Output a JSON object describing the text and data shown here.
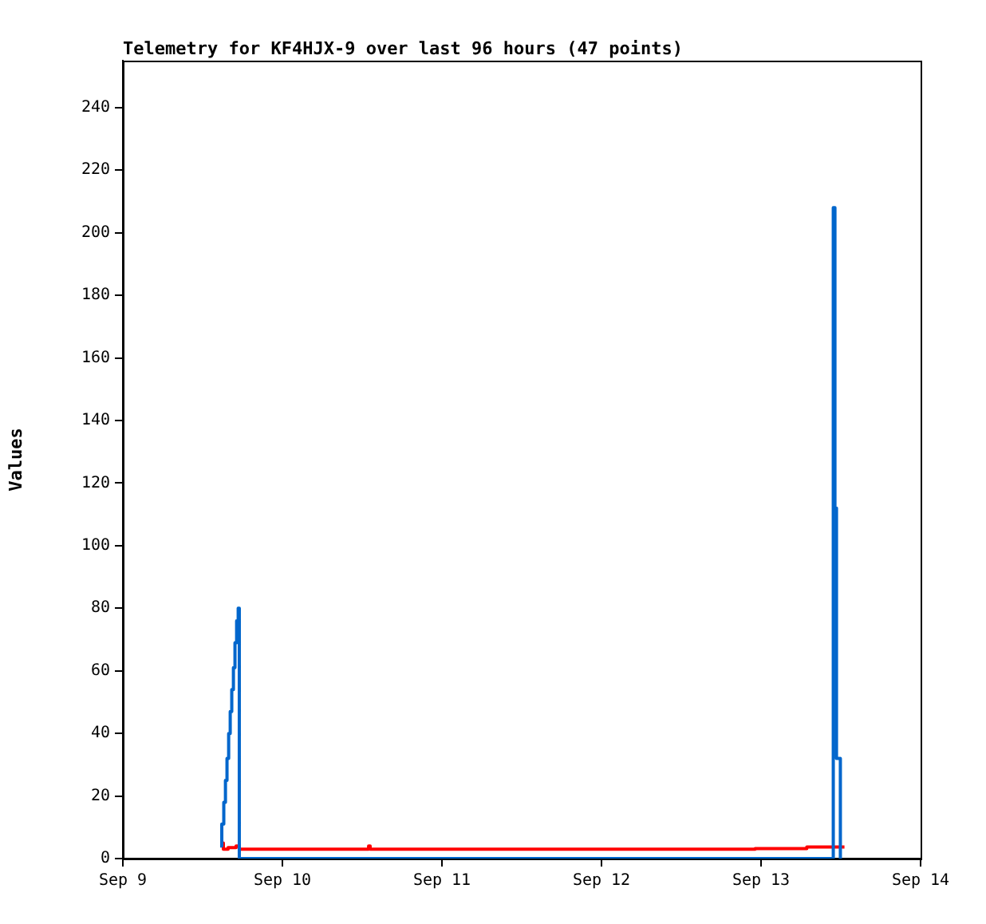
{
  "chart_data": {
    "type": "step",
    "title": "Telemetry for KF4HJX-9 over last 96 hours (47 points)",
    "ylabel": "Values",
    "series": [
      {
        "color": "#0066cc",
        "x": [
          "--09-09T14:38",
          "--09-09T14:53",
          "--09-09T15:11",
          "--09-09T15:26",
          "--09-09T15:40",
          "--09-09T15:55",
          "--09-09T16:09",
          "--09-09T16:23",
          "--09-09T16:38",
          "--09-09T16:52",
          "--09-09T17:07",
          "--09-09T17:21",
          "--09-09T17:31",
          "--09-13T10:52",
          "--09-13T11:07",
          "--09-13T11:21",
          "--09-13T11:56"
        ],
        "values": [
          4,
          11,
          18,
          25,
          32,
          40,
          47,
          54,
          61,
          69,
          76,
          80,
          0,
          208,
          112,
          32,
          0
        ]
      },
      {
        "color": "#ff0000",
        "x": [
          "--09-09T14:43",
          "--09-09T15:07",
          "--09-09T15:50",
          "--09-09T17:02",
          "--09-09T17:31",
          "--09-10T12:58",
          "--09-10T13:12",
          "--09-12T23:07",
          "--09-13T06:53",
          "--09-13T12:33"
        ],
        "values": [
          5,
          3,
          3.5,
          4,
          3,
          4,
          3,
          3.2,
          3.7,
          3.7
        ]
      }
    ],
    "xlim": [
      "--09-09",
      "--09-14"
    ],
    "xticks": [
      {
        "value": "--09-09",
        "label": "Sep 9"
      },
      {
        "value": "--09-10",
        "label": "Sep 10"
      },
      {
        "value": "--09-11",
        "label": "Sep 11"
      },
      {
        "value": "--09-12",
        "label": "Sep 12"
      },
      {
        "value": "--09-13",
        "label": "Sep 13"
      },
      {
        "value": "--09-14",
        "label": "Sep 14"
      }
    ],
    "ylim": [
      0,
      255
    ],
    "yticks": [
      0,
      20,
      40,
      60,
      80,
      100,
      120,
      140,
      160,
      180,
      200,
      220,
      240
    ],
    "grid": false,
    "legend": false,
    "marker": "none",
    "line_style": "solid"
  }
}
